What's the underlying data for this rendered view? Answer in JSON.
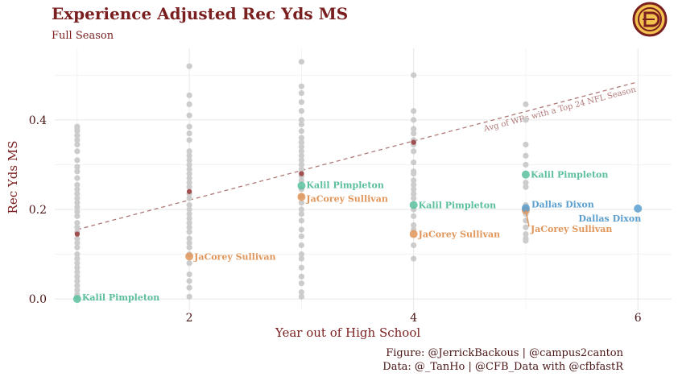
{
  "chart_data": {
    "type": "scatter",
    "title": "Experience Adjusted Rec Yds MS",
    "subtitle": "Full Season",
    "xlabel": "Year out of High School",
    "ylabel": "Rec Yds MS",
    "xlim": [
      0.8,
      6.3
    ],
    "ylim": [
      -0.025,
      0.56
    ],
    "x_ticks": [
      2,
      4,
      6
    ],
    "y_ticks": [
      0.0,
      0.2,
      0.4
    ],
    "y_tick_labels": [
      "0.0",
      "0.2",
      "0.4"
    ],
    "grid": true,
    "colors": {
      "background_points": "#cccccc",
      "kalil": "#5bbf9c",
      "jacorey": "#e0965a",
      "dallas": "#5b9fcf",
      "avg_points": "#a05050",
      "reference_line": "#b07878",
      "title": "#7a1f1f"
    },
    "reference_line": {
      "label": "Avg of WRs with a Top 24 NFL Season",
      "from": [
        1,
        0.155
      ],
      "to": [
        6,
        0.485
      ],
      "style": "dashed"
    },
    "average_points": [
      {
        "x": 1,
        "y": 0.145
      },
      {
        "x": 2,
        "y": 0.24
      },
      {
        "x": 3,
        "y": 0.28
      },
      {
        "x": 4,
        "y": 0.35
      }
    ],
    "background_points": [
      {
        "x": 1,
        "y": [
          0.385,
          0.38,
          0.375,
          0.365,
          0.355,
          0.345,
          0.33,
          0.31,
          0.295,
          0.285,
          0.27,
          0.255,
          0.245,
          0.235,
          0.225,
          0.215,
          0.205,
          0.195,
          0.185,
          0.17,
          0.16,
          0.15,
          0.135,
          0.125,
          0.115,
          0.1,
          0.09,
          0.08,
          0.07,
          0.06,
          0.05,
          0.04,
          0.03,
          0.02,
          0.01,
          0.005
        ]
      },
      {
        "x": 2,
        "y": [
          0.52,
          0.455,
          0.435,
          0.41,
          0.385,
          0.37,
          0.355,
          0.33,
          0.32,
          0.31,
          0.3,
          0.29,
          0.28,
          0.27,
          0.26,
          0.25,
          0.235,
          0.225,
          0.21,
          0.2,
          0.19,
          0.18,
          0.17,
          0.16,
          0.15,
          0.135,
          0.125,
          0.115,
          0.1,
          0.08,
          0.055,
          0.04,
          0.025,
          0.005
        ]
      },
      {
        "x": 3,
        "y": [
          0.53,
          0.475,
          0.46,
          0.44,
          0.42,
          0.4,
          0.39,
          0.375,
          0.36,
          0.35,
          0.34,
          0.33,
          0.32,
          0.31,
          0.3,
          0.29,
          0.275,
          0.265,
          0.245,
          0.23,
          0.215,
          0.2,
          0.19,
          0.175,
          0.155,
          0.14,
          0.12,
          0.1,
          0.09,
          0.07,
          0.05,
          0.035,
          0.015,
          0.005
        ]
      },
      {
        "x": 4,
        "y": [
          0.5,
          0.42,
          0.4,
          0.38,
          0.37,
          0.355,
          0.345,
          0.33,
          0.305,
          0.285,
          0.28,
          0.265,
          0.255,
          0.245,
          0.235,
          0.225,
          0.2,
          0.185,
          0.165,
          0.155,
          0.12,
          0.09
        ]
      },
      {
        "x": 5,
        "y": [
          0.435,
          0.4,
          0.345,
          0.32,
          0.3,
          0.26,
          0.25,
          0.21,
          0.19,
          0.175,
          0.16,
          0.145,
          0.135,
          0.13
        ]
      }
    ],
    "highlighted_points": [
      {
        "player": "Kalil Pimpleton",
        "color_key": "kalil",
        "x": 1,
        "y": 0.0
      },
      {
        "player": "Kalil Pimpleton",
        "color_key": "kalil",
        "x": 3,
        "y": 0.253
      },
      {
        "player": "Kalil Pimpleton",
        "color_key": "kalil",
        "x": 4,
        "y": 0.21
      },
      {
        "player": "Kalil Pimpleton",
        "color_key": "kalil",
        "x": 5,
        "y": 0.278
      },
      {
        "player": "JaCorey Sullivan",
        "color_key": "jacorey",
        "x": 2,
        "y": 0.095
      },
      {
        "player": "JaCorey Sullivan",
        "color_key": "jacorey",
        "x": 3,
        "y": 0.228
      },
      {
        "player": "JaCorey Sullivan",
        "color_key": "jacorey",
        "x": 4,
        "y": 0.145
      },
      {
        "player": "JaCorey Sullivan",
        "color_key": "jacorey",
        "x": 5,
        "y": 0.198
      },
      {
        "player": "Dallas Dixon",
        "color_key": "dallas",
        "x": 5,
        "y": 0.203
      },
      {
        "player": "Dallas Dixon",
        "color_key": "dallas",
        "x": 6,
        "y": 0.202
      }
    ],
    "caption": [
      "Figure: @JerrickBackous | @campus2canton",
      "Data: @_TanHo | @CFB_Data with @cfbfastR"
    ]
  },
  "logo": {
    "icon": "campus2canton-logo-icon"
  }
}
